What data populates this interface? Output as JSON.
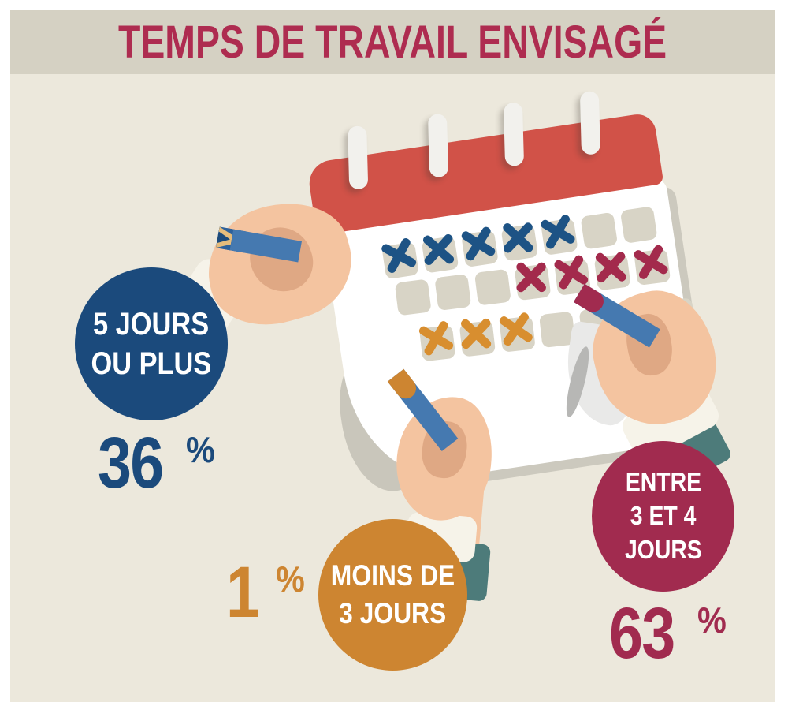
{
  "title": "TEMPS DE TRAVAIL ENVISAGÉ",
  "palette": {
    "band": "#d5d1c3",
    "main": "#ece8dc",
    "crimson": "#ae2c50",
    "blue": "#1b4a7c",
    "maroon": "#a12b4f",
    "orange": "#cd8531",
    "cal_red": "#d15248",
    "square": "#d8d4c6",
    "x_blue": "#1d5385",
    "x_maroon": "#a32a4c",
    "x_orange": "#d88e2f"
  },
  "stats": [
    {
      "id": "five-days-or-more",
      "label_lines": [
        "5 JOURS",
        "OU PLUS"
      ],
      "value": "36",
      "unit": "%",
      "color": "#1b4a7c"
    },
    {
      "id": "between-3-and-4-days",
      "label_lines": [
        "ENTRE",
        "3 ET 4",
        "JOURS"
      ],
      "value": "63",
      "unit": "%",
      "color": "#a12b4f"
    },
    {
      "id": "less-than-3-days",
      "label_lines": [
        "MOINS DE",
        "3 JOURS"
      ],
      "value": "1",
      "unit": "%",
      "color": "#cd8531"
    }
  ],
  "calendar": {
    "grid": [
      [
        "blue",
        "blue",
        "blue",
        "blue",
        "blue",
        null,
        null
      ],
      [
        null,
        null,
        null,
        "maroon",
        "maroon",
        "maroon",
        "maroon"
      ],
      [
        "orange",
        "orange",
        "orange",
        null,
        null,
        null,
        null
      ]
    ]
  },
  "chart_data": {
    "type": "pie",
    "title": "TEMPS DE TRAVAIL ENVISAGÉ",
    "categories": [
      "5 JOURS OU PLUS",
      "ENTRE 3 ET 4 JOURS",
      "MOINS DE 3 JOURS"
    ],
    "values": [
      36,
      63,
      1
    ],
    "unit": "%",
    "colors": [
      "#1b4a7c",
      "#a12b4f",
      "#cd8531"
    ],
    "legend_position": "around-illustration"
  }
}
